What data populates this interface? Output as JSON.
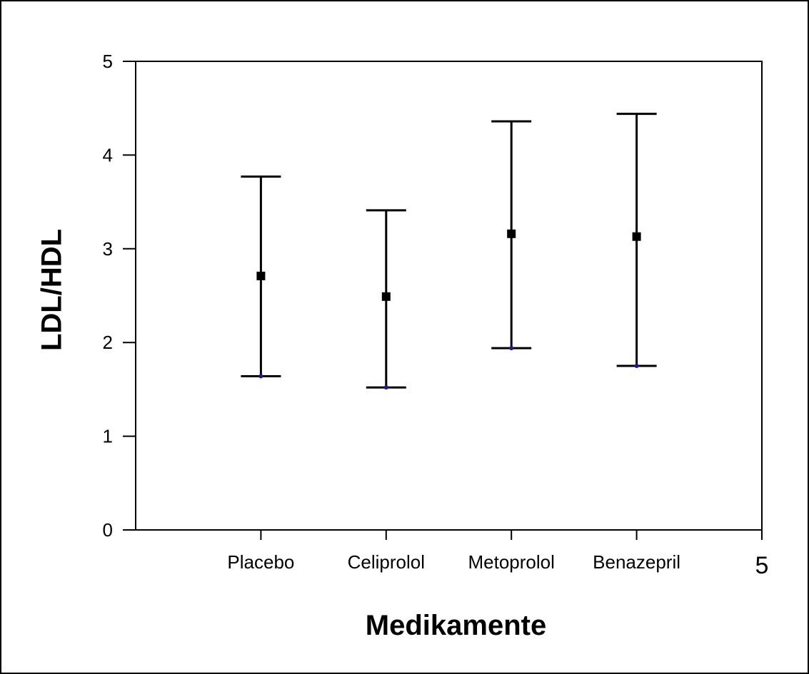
{
  "chart_data": {
    "type": "errorbar",
    "xlabel": "Medikamente",
    "ylabel": "LDL/HDL",
    "ylim": [
      0,
      5
    ],
    "yticks": [
      0,
      1,
      2,
      3,
      4,
      5
    ],
    "categories": [
      "Placebo",
      "Celiprolol",
      "Metoprolol",
      "Benazepril"
    ],
    "extra_x_tick_label": "5",
    "means": [
      2.71,
      2.49,
      3.16,
      3.13
    ],
    "lower": [
      1.64,
      1.52,
      1.94,
      1.75
    ],
    "upper": [
      3.77,
      3.41,
      4.36,
      4.44
    ],
    "grid": false,
    "legend": "none"
  }
}
